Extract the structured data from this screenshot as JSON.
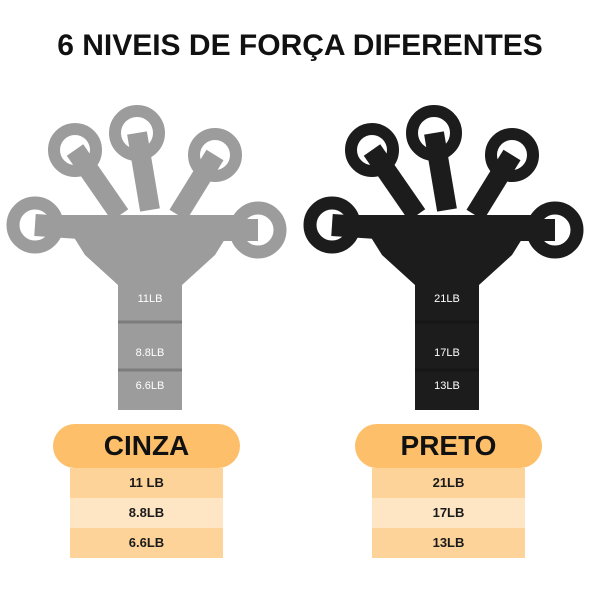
{
  "title": "6 NIVEIS DE FORÇA DIFERENTES",
  "products": [
    {
      "name": "CINZA",
      "color": "#9c9c9c",
      "levels": [
        "11 LB",
        "8.8LB",
        "6.6LB"
      ],
      "printed_labels": [
        "11LB",
        "8.8LB",
        "6.6LB"
      ]
    },
    {
      "name": "PRETO",
      "color": "#1c1c1c",
      "levels": [
        "21LB",
        "17LB",
        "13LB"
      ],
      "printed_labels": [
        "21LB",
        "17LB",
        "13LB"
      ]
    }
  ],
  "colors": {
    "pill": "#fdbf6a",
    "row": "#fed39a",
    "row_alt": "#fee6c4"
  }
}
